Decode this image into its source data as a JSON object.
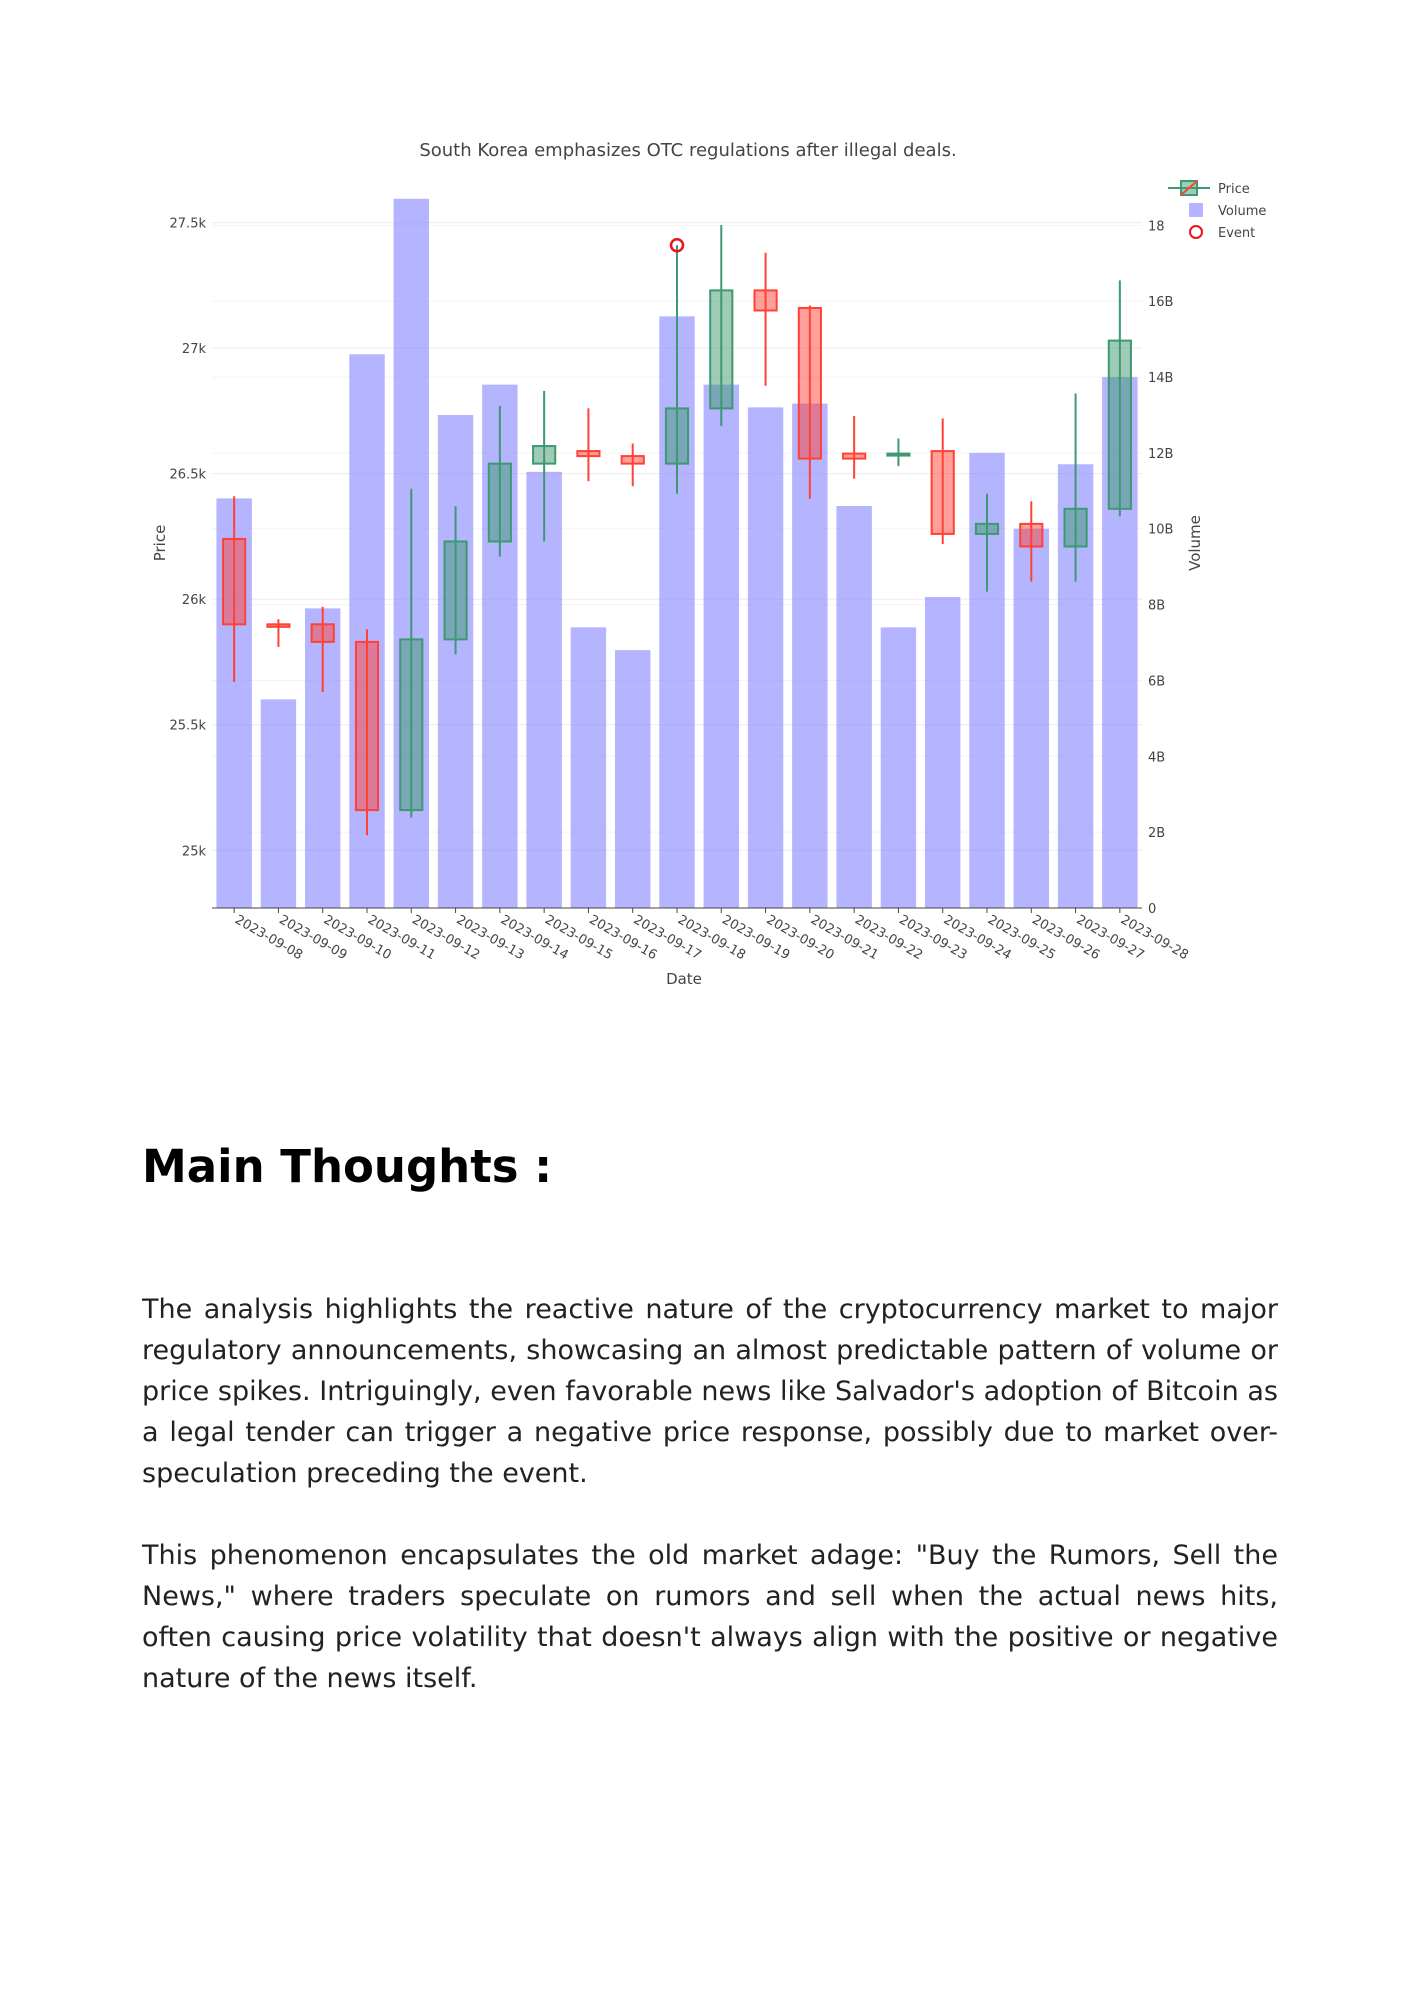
{
  "chart_data": {
    "type": "candlestick",
    "title": "South Korea emphasizes OTC regulations after illegal deals.",
    "xlabel": "Date",
    "ylabel": "Price",
    "y2label": "Volume",
    "ylim": [
      24770,
      27610
    ],
    "y2lim": [
      0,
      18.8
    ],
    "yticks": [
      25000,
      25500,
      26000,
      26500,
      27000,
      27500
    ],
    "yticklabels": [
      "25k",
      "25.5k",
      "26k",
      "26.5k",
      "27k",
      "27.5k"
    ],
    "y2ticks": [
      0,
      2,
      4,
      6,
      8,
      10,
      12,
      14,
      16,
      18
    ],
    "y2ticklabels": [
      "0",
      "2B",
      "4B",
      "6B",
      "8B",
      "10B",
      "12B",
      "14B",
      "16B",
      "18"
    ],
    "categories": [
      "2023-09-08",
      "2023-09-09",
      "2023-09-10",
      "2023-09-11",
      "2023-09-12",
      "2023-09-13",
      "2023-09-14",
      "2023-09-15",
      "2023-09-16",
      "2023-09-17",
      "2023-09-18",
      "2023-09-19",
      "2023-09-20",
      "2023-09-21",
      "2023-09-22",
      "2023-09-23",
      "2023-09-24",
      "2023-09-25",
      "2023-09-26",
      "2023-09-27",
      "2023-09-28"
    ],
    "series": [
      {
        "name": "Price",
        "open": [
          26240,
          25900,
          25900,
          25830,
          25160,
          25840,
          26230,
          26540,
          26590,
          26570,
          26540,
          26760,
          27230,
          27160,
          26580,
          26580,
          26590,
          26260,
          26300,
          26210,
          26360
        ],
        "high": [
          26410,
          25920,
          25970,
          25880,
          26440,
          26370,
          26770,
          26830,
          26760,
          26620,
          27410,
          27490,
          27380,
          27170,
          26730,
          26640,
          26720,
          26420,
          26390,
          26820,
          27270
        ],
        "low": [
          25670,
          25810,
          25630,
          25060,
          25130,
          25780,
          26170,
          26230,
          26470,
          26450,
          26420,
          26690,
          26850,
          26400,
          26480,
          26530,
          26220,
          26030,
          26070,
          26070,
          26330
        ],
        "close": [
          25900,
          25890,
          25830,
          25160,
          25840,
          26230,
          26540,
          26610,
          26570,
          26540,
          26760,
          27230,
          27150,
          26560,
          26560,
          26580,
          26260,
          26300,
          26210,
          26360,
          27030
        ]
      },
      {
        "name": "Volume",
        "values": [
          10.8,
          5.5,
          7.9,
          14.6,
          18.7,
          13.0,
          13.8,
          11.5,
          7.4,
          6.8,
          15.6,
          13.8,
          13.2,
          13.3,
          10.6,
          7.4,
          8.2,
          12.0,
          10.0,
          11.7,
          14.0
        ]
      },
      {
        "name": "Event",
        "x": [
          "2023-09-18"
        ],
        "y": [
          27410
        ]
      }
    ],
    "legend": [
      "Price",
      "Volume",
      "Event"
    ],
    "legend_position": "top-right",
    "colors": {
      "increasing": "#3d9970",
      "decreasing": "#ff4136",
      "volume": "#8c8cff",
      "event": "#e8141e"
    }
  },
  "article": {
    "heading": "Main Thoughts :",
    "paragraphs": [
      "The analysis highlights the reactive nature of the cryptocurrency market to major regulatory announcements, showcasing an almost predictable pattern of volume or price spikes. Intriguingly, even favorable news like Salvador's adoption of Bitcoin as a legal tender can trigger a negative price response, possibly due to market over-speculation preceding the event.",
      "This phenomenon encapsulates the old market adage: \"Buy the Rumors, Sell the News,\" where traders speculate on rumors and sell when the actual news hits, often causing price volatility that doesn't always align with the positive or negative nature of the news itself."
    ]
  }
}
